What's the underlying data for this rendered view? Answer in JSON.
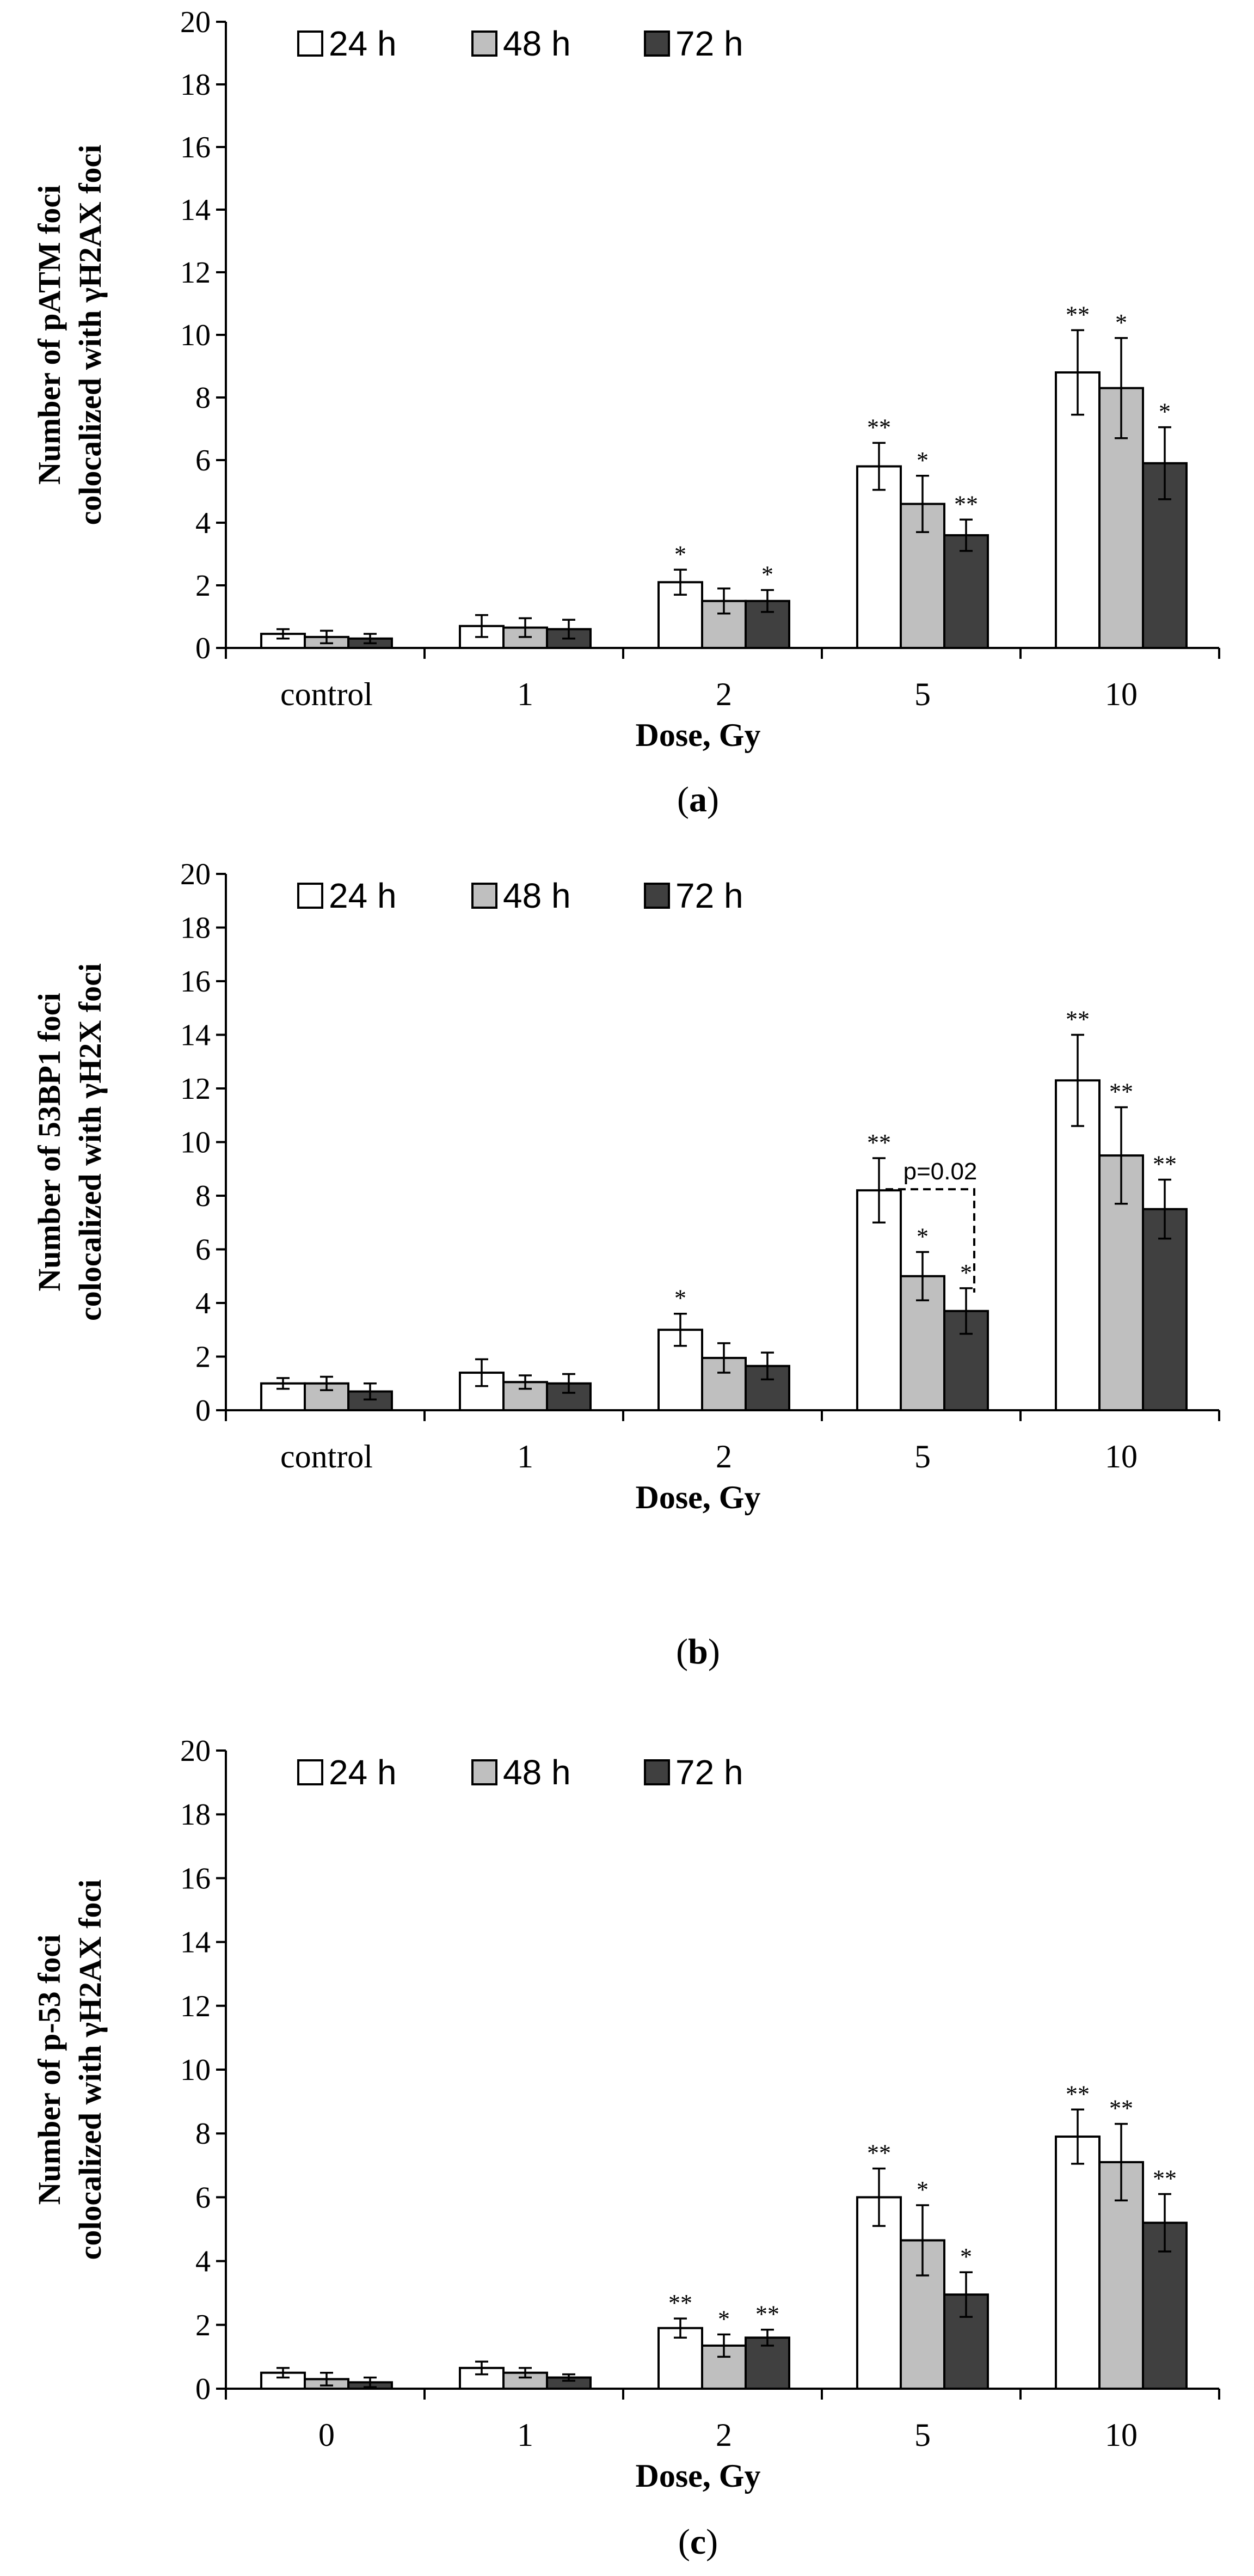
{
  "chart_data": [
    {
      "type": "bar",
      "panel_label": "a",
      "ylabel_line1": "Number of pATM foci",
      "ylabel_line2": "colocalized with γH2AX foci",
      "xlabel": "Dose, Gy",
      "categories": [
        "control",
        "1",
        "2",
        "5",
        "10"
      ],
      "ylim": [
        0,
        20
      ],
      "yticks": [
        "0",
        "2",
        "4",
        "6",
        "8",
        "10",
        "12",
        "14",
        "16",
        "18",
        "20"
      ],
      "legend": [
        "24 h",
        "48 h",
        "72 h"
      ],
      "series": [
        {
          "name": "24 h",
          "color": "#ffffff",
          "values": [
            0.45,
            0.7,
            2.1,
            5.8,
            8.8
          ],
          "errors": [
            0.15,
            0.35,
            0.4,
            0.75,
            1.35
          ],
          "sig": [
            "",
            "",
            "*",
            "**",
            "**"
          ]
        },
        {
          "name": "48 h",
          "color": "#bfbfbf",
          "values": [
            0.35,
            0.65,
            1.5,
            4.6,
            8.3
          ],
          "errors": [
            0.2,
            0.3,
            0.4,
            0.9,
            1.6
          ],
          "sig": [
            "",
            "",
            "",
            "*",
            "*"
          ]
        },
        {
          "name": "72 h",
          "color": "#404040",
          "values": [
            0.3,
            0.6,
            1.5,
            3.6,
            5.9
          ],
          "errors": [
            0.15,
            0.3,
            0.35,
            0.5,
            1.15
          ],
          "sig": [
            "",
            "",
            "*",
            "**",
            "*"
          ]
        }
      ]
    },
    {
      "type": "bar",
      "panel_label": "b",
      "ylabel_line1": "Number of 53BP1 foci",
      "ylabel_line2": "colocalized with γH2X foci",
      "xlabel": "Dose, Gy",
      "categories": [
        "control",
        "1",
        "2",
        "5",
        "10"
      ],
      "ylim": [
        0,
        20
      ],
      "yticks": [
        "0",
        "2",
        "4",
        "6",
        "8",
        "10",
        "12",
        "14",
        "16",
        "18",
        "20"
      ],
      "legend": [
        "24 h",
        "48 h",
        "72 h"
      ],
      "annotation": "p=0.02",
      "series": [
        {
          "name": "24 h",
          "color": "#ffffff",
          "values": [
            1.0,
            1.4,
            3.0,
            8.2,
            12.3
          ],
          "errors": [
            0.2,
            0.5,
            0.6,
            1.2,
            1.7
          ],
          "sig": [
            "",
            "",
            "*",
            "**",
            "**"
          ]
        },
        {
          "name": "48 h",
          "color": "#bfbfbf",
          "values": [
            1.0,
            1.05,
            1.95,
            5.0,
            9.5
          ],
          "errors": [
            0.25,
            0.25,
            0.55,
            0.9,
            1.8
          ],
          "sig": [
            "",
            "",
            "",
            "*",
            "**"
          ]
        },
        {
          "name": "72 h",
          "color": "#404040",
          "values": [
            0.7,
            1.0,
            1.65,
            3.7,
            7.5
          ],
          "errors": [
            0.3,
            0.35,
            0.5,
            0.85,
            1.1
          ],
          "sig": [
            "",
            "",
            "",
            "*",
            "**"
          ]
        }
      ]
    },
    {
      "type": "bar",
      "panel_label": "c",
      "ylabel_line1": "Number of p-53 foci",
      "ylabel_line2": "colocalized with γH2AX foci",
      "xlabel": "Dose, Gy",
      "categories": [
        "0",
        "1",
        "2",
        "5",
        "10"
      ],
      "ylim": [
        0,
        20
      ],
      "yticks": [
        "0",
        "2",
        "4",
        "6",
        "8",
        "10",
        "12",
        "14",
        "16",
        "18",
        "20"
      ],
      "legend": [
        "24 h",
        "48 h",
        "72 h"
      ],
      "series": [
        {
          "name": "24 h",
          "color": "#ffffff",
          "values": [
            0.5,
            0.65,
            1.9,
            6.0,
            7.9
          ],
          "errors": [
            0.15,
            0.2,
            0.3,
            0.9,
            0.85
          ],
          "sig": [
            "",
            "",
            "**",
            "**",
            "**"
          ]
        },
        {
          "name": "48 h",
          "color": "#bfbfbf",
          "values": [
            0.3,
            0.5,
            1.35,
            4.65,
            7.1
          ],
          "errors": [
            0.2,
            0.15,
            0.35,
            1.1,
            1.2
          ],
          "sig": [
            "",
            "",
            "*",
            "*",
            "**"
          ]
        },
        {
          "name": "72 h",
          "color": "#404040",
          "values": [
            0.2,
            0.35,
            1.6,
            2.95,
            5.2
          ],
          "errors": [
            0.15,
            0.1,
            0.25,
            0.7,
            0.9
          ],
          "sig": [
            "",
            "",
            "**",
            "*",
            "**"
          ]
        }
      ]
    }
  ]
}
